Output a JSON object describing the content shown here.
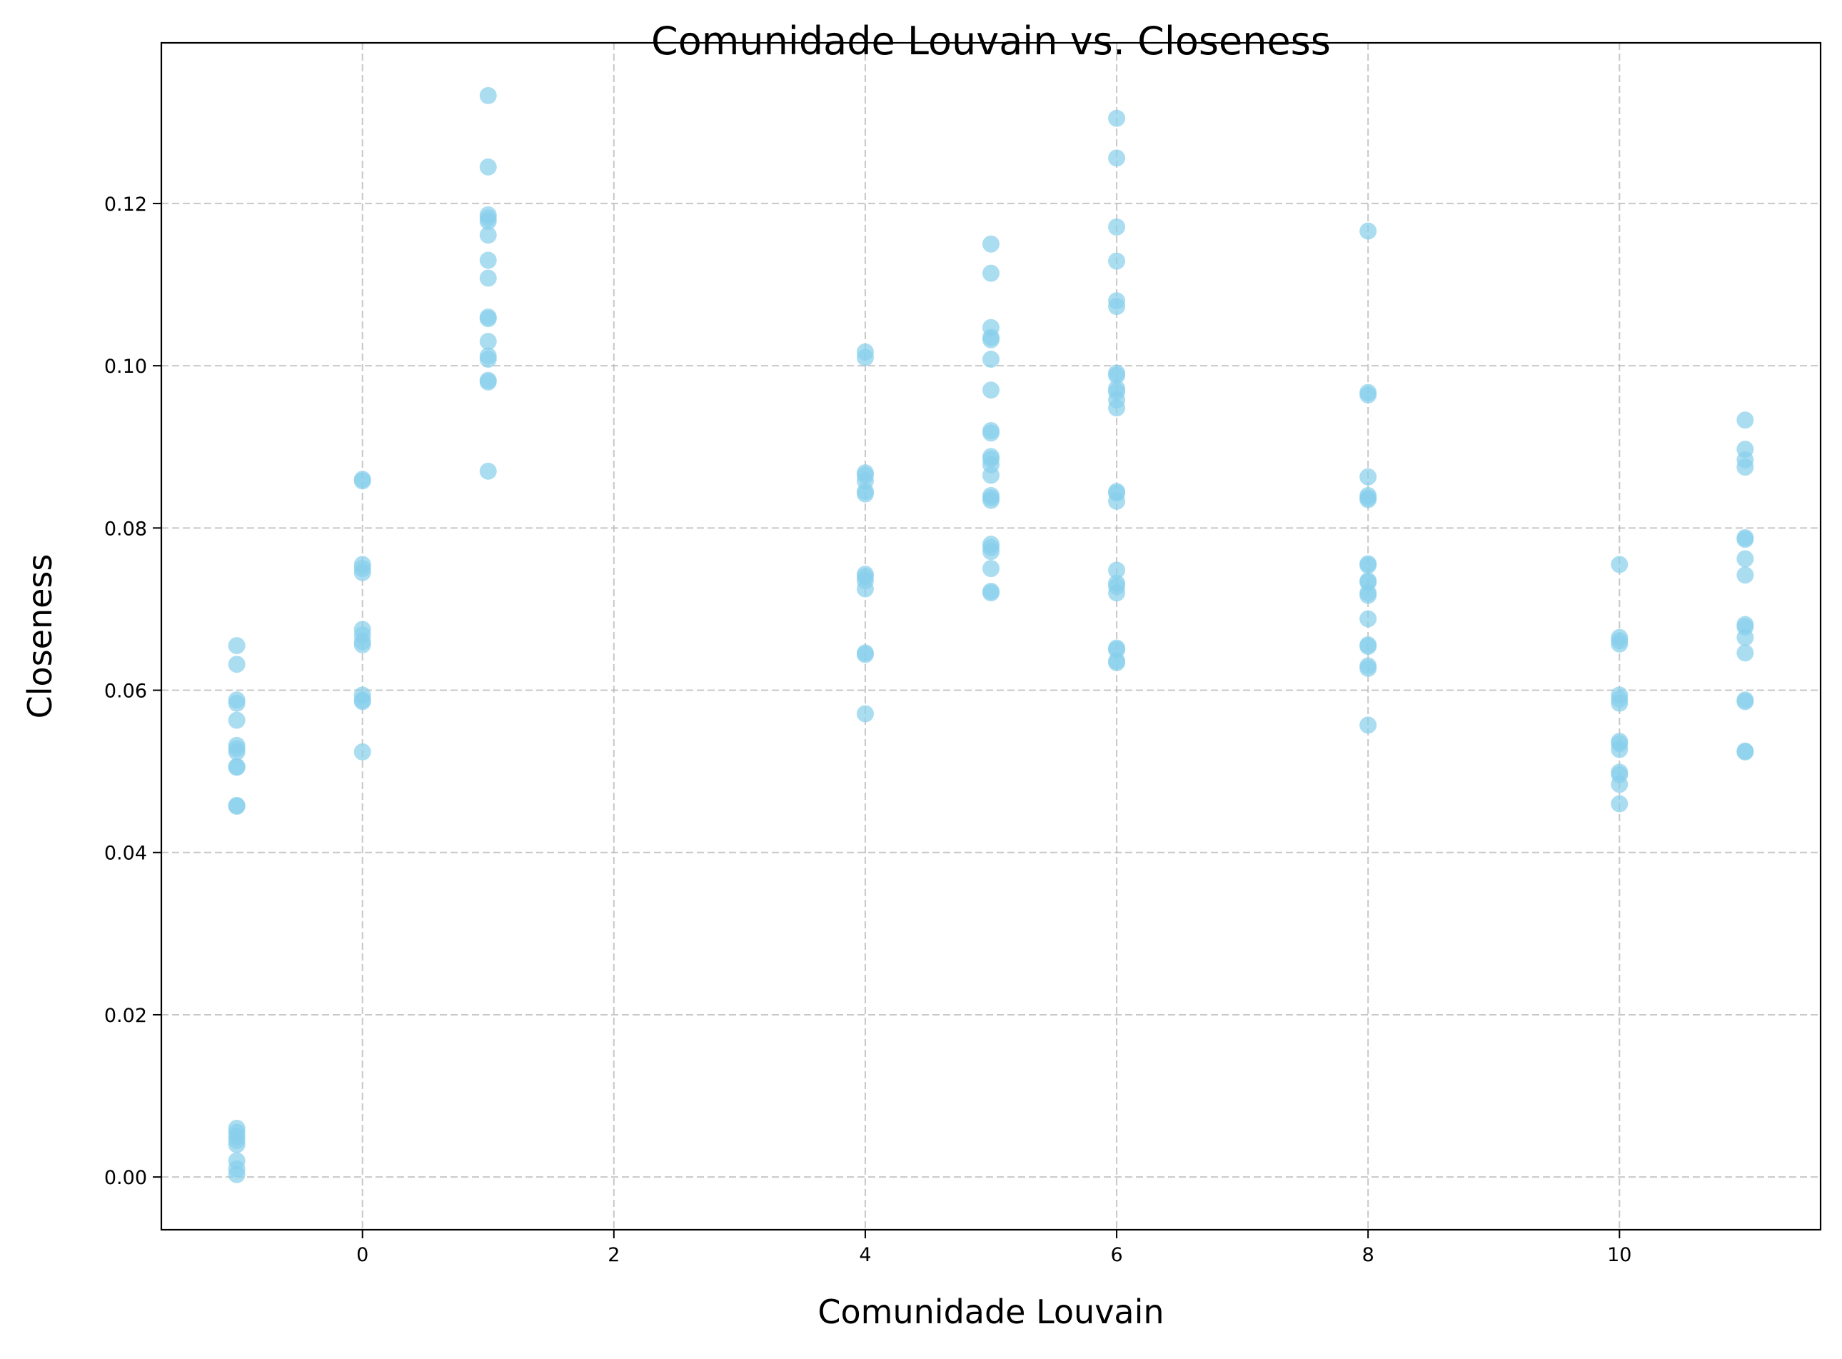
{
  "chart_data": {
    "type": "scatter",
    "title": "Comunidade Louvain vs. Closeness",
    "xlabel": "Comunidade Louvain",
    "ylabel": "Closeness",
    "xlim": [
      -1.6,
      11.6
    ],
    "ylim": [
      -0.0065,
      0.1398
    ],
    "xticks": [
      0,
      2,
      4,
      6,
      8,
      10
    ],
    "yticks": [
      0.0,
      0.02,
      0.04,
      0.06,
      0.08,
      0.1,
      0.12
    ],
    "xtick_labels": [
      "0",
      "2",
      "4",
      "6",
      "8",
      "10"
    ],
    "ytick_labels": [
      "0.00",
      "0.02",
      "0.04",
      "0.06",
      "0.08",
      "0.10",
      "0.12"
    ],
    "grid": true,
    "grid_style": "dashed",
    "point_color": "#87ceeb",
    "point_alpha": 0.7,
    "series": [
      {
        "points": [
          [
            -1,
            0.0655
          ],
          [
            -1,
            0.0632
          ],
          [
            -1,
            0.0588
          ],
          [
            -1,
            0.0584
          ],
          [
            -1,
            0.0563
          ],
          [
            -1,
            0.0532
          ],
          [
            -1,
            0.0528
          ],
          [
            -1,
            0.0524
          ],
          [
            -1,
            0.0506
          ],
          [
            -1,
            0.0505
          ],
          [
            -1,
            0.0458
          ],
          [
            -1,
            0.0457
          ],
          [
            -1,
            0.006
          ],
          [
            -1,
            0.0055
          ],
          [
            -1,
            0.005
          ],
          [
            -1,
            0.0045
          ],
          [
            -1,
            0.004
          ],
          [
            -1,
            0.002
          ],
          [
            -1,
            0.001
          ],
          [
            -1,
            0.0003
          ],
          [
            0,
            0.086
          ],
          [
            0,
            0.0858
          ],
          [
            0,
            0.0755
          ],
          [
            0,
            0.075
          ],
          [
            0,
            0.0745
          ],
          [
            0,
            0.0675
          ],
          [
            0,
            0.0668
          ],
          [
            0,
            0.066
          ],
          [
            0,
            0.0656
          ],
          [
            0,
            0.0594
          ],
          [
            0,
            0.0588
          ],
          [
            0,
            0.0586
          ],
          [
            0,
            0.0524
          ],
          [
            1,
            0.1333
          ],
          [
            1,
            0.1245
          ],
          [
            1,
            0.1186
          ],
          [
            1,
            0.1182
          ],
          [
            1,
            0.1178
          ],
          [
            1,
            0.1161
          ],
          [
            1,
            0.113
          ],
          [
            1,
            0.1108
          ],
          [
            1,
            0.106
          ],
          [
            1,
            0.1058
          ],
          [
            1,
            0.103
          ],
          [
            1,
            0.1012
          ],
          [
            1,
            0.1008
          ],
          [
            1,
            0.0982
          ],
          [
            1,
            0.098
          ],
          [
            1,
            0.087
          ],
          [
            4,
            0.1017
          ],
          [
            4,
            0.101
          ],
          [
            4,
            0.0868
          ],
          [
            4,
            0.0865
          ],
          [
            4,
            0.0858
          ],
          [
            4,
            0.0845
          ],
          [
            4,
            0.0842
          ],
          [
            4,
            0.0743
          ],
          [
            4,
            0.074
          ],
          [
            4,
            0.0735
          ],
          [
            4,
            0.0725
          ],
          [
            4,
            0.0646
          ],
          [
            4,
            0.0644
          ],
          [
            4,
            0.0571
          ],
          [
            5,
            0.115
          ],
          [
            5,
            0.1114
          ],
          [
            5,
            0.1047
          ],
          [
            5,
            0.1035
          ],
          [
            5,
            0.1032
          ],
          [
            5,
            0.1008
          ],
          [
            5,
            0.097
          ],
          [
            5,
            0.092
          ],
          [
            5,
            0.0917
          ],
          [
            5,
            0.0888
          ],
          [
            5,
            0.0885
          ],
          [
            5,
            0.0878
          ],
          [
            5,
            0.0865
          ],
          [
            5,
            0.084
          ],
          [
            5,
            0.0837
          ],
          [
            5,
            0.0834
          ],
          [
            5,
            0.078
          ],
          [
            5,
            0.0776
          ],
          [
            5,
            0.0771
          ],
          [
            5,
            0.075
          ],
          [
            5,
            0.0722
          ],
          [
            5,
            0.072
          ],
          [
            6,
            0.1305
          ],
          [
            6,
            0.1256
          ],
          [
            6,
            0.1171
          ],
          [
            6,
            0.1129
          ],
          [
            6,
            0.108
          ],
          [
            6,
            0.1073
          ],
          [
            6,
            0.0991
          ],
          [
            6,
            0.0988
          ],
          [
            6,
            0.0972
          ],
          [
            6,
            0.0968
          ],
          [
            6,
            0.0958
          ],
          [
            6,
            0.0948
          ],
          [
            6,
            0.0845
          ],
          [
            6,
            0.0843
          ],
          [
            6,
            0.0833
          ],
          [
            6,
            0.0748
          ],
          [
            6,
            0.0732
          ],
          [
            6,
            0.0728
          ],
          [
            6,
            0.072
          ],
          [
            6,
            0.0652
          ],
          [
            6,
            0.065
          ],
          [
            6,
            0.0636
          ],
          [
            6,
            0.0634
          ],
          [
            8,
            0.1166
          ],
          [
            8,
            0.0967
          ],
          [
            8,
            0.0964
          ],
          [
            8,
            0.0863
          ],
          [
            8,
            0.084
          ],
          [
            8,
            0.0837
          ],
          [
            8,
            0.0835
          ],
          [
            8,
            0.0756
          ],
          [
            8,
            0.0754
          ],
          [
            8,
            0.0735
          ],
          [
            8,
            0.0733
          ],
          [
            8,
            0.072
          ],
          [
            8,
            0.0717
          ],
          [
            8,
            0.0688
          ],
          [
            8,
            0.0656
          ],
          [
            8,
            0.0654
          ],
          [
            8,
            0.063
          ],
          [
            8,
            0.0627
          ],
          [
            8,
            0.0557
          ],
          [
            10,
            0.0755
          ],
          [
            10,
            0.0665
          ],
          [
            10,
            0.0661
          ],
          [
            10,
            0.0657
          ],
          [
            10,
            0.0594
          ],
          [
            10,
            0.0589
          ],
          [
            10,
            0.0584
          ],
          [
            10,
            0.0537
          ],
          [
            10,
            0.0534
          ],
          [
            10,
            0.0527
          ],
          [
            10,
            0.0499
          ],
          [
            10,
            0.0496
          ],
          [
            10,
            0.0484
          ],
          [
            10,
            0.046
          ],
          [
            11,
            0.0933
          ],
          [
            11,
            0.0897
          ],
          [
            11,
            0.0884
          ],
          [
            11,
            0.0875
          ],
          [
            11,
            0.0788
          ],
          [
            11,
            0.0786
          ],
          [
            11,
            0.0762
          ],
          [
            11,
            0.0742
          ],
          [
            11,
            0.0681
          ],
          [
            11,
            0.0678
          ],
          [
            11,
            0.0665
          ],
          [
            11,
            0.0646
          ],
          [
            11,
            0.0588
          ],
          [
            11,
            0.0586
          ],
          [
            11,
            0.0525
          ],
          [
            11,
            0.0524
          ]
        ]
      }
    ]
  }
}
